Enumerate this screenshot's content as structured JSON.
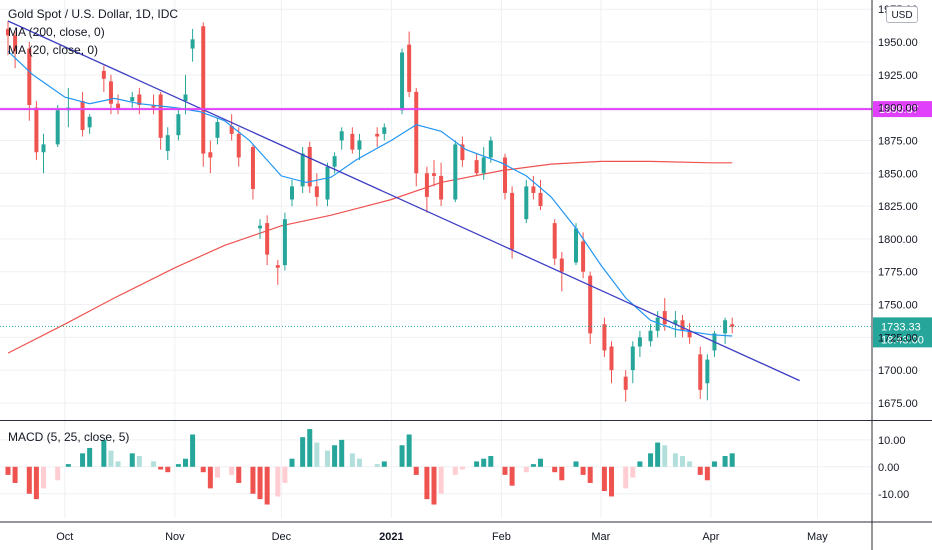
{
  "chart_data": [
    {
      "type": "candlestick",
      "title": "Gold Spot / U.S. Dollar, 1D, IDC",
      "currency_button": "USD",
      "indicators": [
        "MA (200, close, 0)",
        "MA (20, close, 0)"
      ],
      "y_ticks": [
        "1975.00",
        "1950.00",
        "1925.00",
        "1900.00",
        "1875.00",
        "1850.00",
        "1825.00",
        "1800.00",
        "1775.00",
        "1750.00",
        "1725.00",
        "1700.00",
        "1675.00"
      ],
      "y_tick_values": [
        1975,
        1950,
        1925,
        1900,
        1875,
        1850,
        1825,
        1800,
        1775,
        1750,
        1725,
        1700,
        1675
      ],
      "ylim": [
        1662,
        1982
      ],
      "x_ticks": [
        "Oct",
        "Nov",
        "Dec",
        "2021",
        "Feb",
        "Mar",
        "Apr",
        "May"
      ],
      "x_tick_dates": [
        "2020-10-01",
        "2020-11-01",
        "2020-12-01",
        "2021-01-01",
        "2021-02-01",
        "2021-03-01",
        "2021-04-01",
        "2021-05-01"
      ],
      "horizontal_line": {
        "value": 1898.87,
        "label": "1898.87",
        "color": "#e040fb"
      },
      "last_price": {
        "value": 1733.33,
        "label": "1733.33",
        "countdown": "18:43:00",
        "color": "#26a69a"
      },
      "trendline": {
        "start": {
          "date": "2020-09-15",
          "price": 1966
        },
        "end": {
          "date": "2021-04-26",
          "price": 1692
        },
        "color": "#3f3fc4"
      },
      "ma200": {
        "color": "#ef5350",
        "points": [
          [
            "2020-09-15",
            1713
          ],
          [
            "2020-10-01",
            1735
          ],
          [
            "2020-10-15",
            1755
          ],
          [
            "2020-11-01",
            1778
          ],
          [
            "2020-11-15",
            1795
          ],
          [
            "2020-12-01",
            1810
          ],
          [
            "2020-12-15",
            1818
          ],
          [
            "2021-01-01",
            1830
          ],
          [
            "2021-01-15",
            1843
          ],
          [
            "2021-02-01",
            1852
          ],
          [
            "2021-02-15",
            1857
          ],
          [
            "2021-03-01",
            1859
          ],
          [
            "2021-03-15",
            1859
          ],
          [
            "2021-04-01",
            1858
          ],
          [
            "2021-04-07",
            1858
          ]
        ]
      },
      "ma20": {
        "color": "#2196f3",
        "points": [
          [
            "2020-09-15",
            1943
          ],
          [
            "2020-09-22",
            1925
          ],
          [
            "2020-10-01",
            1908
          ],
          [
            "2020-10-08",
            1903
          ],
          [
            "2020-10-15",
            1907
          ],
          [
            "2020-10-22",
            1903
          ],
          [
            "2020-11-01",
            1900
          ],
          [
            "2020-11-08",
            1897
          ],
          [
            "2020-11-15",
            1890
          ],
          [
            "2020-11-22",
            1875
          ],
          [
            "2020-12-01",
            1848
          ],
          [
            "2020-12-08",
            1843
          ],
          [
            "2020-12-15",
            1847
          ],
          [
            "2020-12-22",
            1860
          ],
          [
            "2021-01-01",
            1875
          ],
          [
            "2021-01-08",
            1887
          ],
          [
            "2021-01-15",
            1882
          ],
          [
            "2021-01-22",
            1868
          ],
          [
            "2021-02-01",
            1858
          ],
          [
            "2021-02-08",
            1848
          ],
          [
            "2021-02-15",
            1832
          ],
          [
            "2021-02-22",
            1808
          ],
          [
            "2021-03-01",
            1780
          ],
          [
            "2021-03-08",
            1755
          ],
          [
            "2021-03-15",
            1738
          ],
          [
            "2021-03-22",
            1731
          ],
          [
            "2021-04-01",
            1727
          ],
          [
            "2021-04-07",
            1726
          ]
        ]
      },
      "candles": [
        [
          "2020-09-15",
          1960,
          1966,
          1940,
          1955
        ],
        [
          "2020-09-17",
          1955,
          1958,
          1930,
          1943
        ],
        [
          "2020-09-21",
          1945,
          1950,
          1890,
          1902
        ],
        [
          "2020-09-23",
          1900,
          1905,
          1860,
          1866
        ],
        [
          "2020-09-25",
          1866,
          1880,
          1850,
          1872
        ],
        [
          "2020-09-29",
          1872,
          1902,
          1870,
          1898
        ],
        [
          "2020-10-02",
          1898,
          1915,
          1885,
          1900
        ],
        [
          "2020-10-06",
          1905,
          1912,
          1878,
          1883
        ],
        [
          "2020-10-08",
          1885,
          1895,
          1880,
          1893
        ],
        [
          "2020-10-12",
          1928,
          1932,
          1912,
          1922
        ],
        [
          "2020-10-14",
          1920,
          1925,
          1895,
          1903
        ],
        [
          "2020-10-16",
          1903,
          1910,
          1895,
          1899
        ],
        [
          "2020-10-20",
          1905,
          1912,
          1900,
          1908
        ],
        [
          "2020-10-22",
          1910,
          1915,
          1895,
          1902
        ],
        [
          "2020-10-26",
          1902,
          1910,
          1895,
          1900
        ],
        [
          "2020-10-28",
          1910,
          1912,
          1868,
          1877
        ],
        [
          "2020-10-30",
          1867,
          1885,
          1860,
          1879
        ],
        [
          "2020-11-02",
          1879,
          1900,
          1875,
          1895
        ],
        [
          "2020-11-04",
          1905,
          1925,
          1895,
          1910
        ],
        [
          "2020-11-06",
          1945,
          1960,
          1935,
          1952
        ],
        [
          "2020-11-09",
          1962,
          1965,
          1855,
          1865
        ],
        [
          "2020-11-11",
          1866,
          1875,
          1850,
          1862
        ],
        [
          "2020-11-13",
          1877,
          1892,
          1872,
          1889
        ],
        [
          "2020-11-17",
          1886,
          1895,
          1875,
          1880
        ],
        [
          "2020-11-19",
          1880,
          1885,
          1855,
          1862
        ],
        [
          "2020-11-23",
          1870,
          1872,
          1830,
          1838
        ],
        [
          "2020-11-25",
          1808,
          1815,
          1800,
          1810
        ],
        [
          "2020-11-27",
          1812,
          1818,
          1780,
          1788
        ],
        [
          "2020-11-30",
          1780,
          1784,
          1765,
          1778
        ],
        [
          "2020-12-02",
          1780,
          1820,
          1776,
          1815
        ],
        [
          "2020-12-04",
          1830,
          1845,
          1825,
          1840
        ],
        [
          "2020-12-07",
          1840,
          1870,
          1835,
          1865
        ],
        [
          "2020-12-09",
          1870,
          1874,
          1835,
          1840
        ],
        [
          "2020-12-11",
          1840,
          1850,
          1825,
          1832
        ],
        [
          "2020-12-14",
          1830,
          1858,
          1825,
          1855
        ],
        [
          "2020-12-16",
          1855,
          1866,
          1850,
          1863
        ],
        [
          "2020-12-18",
          1875,
          1885,
          1868,
          1882
        ],
        [
          "2020-12-21",
          1880,
          1885,
          1865,
          1868
        ],
        [
          "2020-12-23",
          1868,
          1880,
          1860,
          1875
        ],
        [
          "2020-12-28",
          1880,
          1885,
          1870,
          1878
        ],
        [
          "2020-12-30",
          1880,
          1888,
          1875,
          1885
        ],
        [
          "2021-01-04",
          1898,
          1945,
          1895,
          1942
        ],
        [
          "2021-01-06",
          1948,
          1958,
          1908,
          1912
        ],
        [
          "2021-01-08",
          1912,
          1915,
          1840,
          1850
        ],
        [
          "2021-01-11",
          1850,
          1855,
          1820,
          1832
        ],
        [
          "2021-01-13",
          1850,
          1860,
          1840,
          1848
        ],
        [
          "2021-01-15",
          1848,
          1858,
          1825,
          1830
        ],
        [
          "2021-01-19",
          1830,
          1875,
          1828,
          1872
        ],
        [
          "2021-01-21",
          1872,
          1878,
          1855,
          1860
        ],
        [
          "2021-01-25",
          1860,
          1865,
          1848,
          1850
        ],
        [
          "2021-01-27",
          1850,
          1870,
          1845,
          1862
        ],
        [
          "2021-01-29",
          1862,
          1878,
          1858,
          1875
        ],
        [
          "2021-02-02",
          1862,
          1865,
          1830,
          1835
        ],
        [
          "2021-02-04",
          1835,
          1840,
          1785,
          1792
        ],
        [
          "2021-02-08",
          1815,
          1845,
          1812,
          1840
        ],
        [
          "2021-02-10",
          1840,
          1848,
          1830,
          1835
        ],
        [
          "2021-02-12",
          1835,
          1845,
          1822,
          1825
        ],
        [
          "2021-02-16",
          1812,
          1815,
          1780,
          1785
        ],
        [
          "2021-02-18",
          1785,
          1790,
          1760,
          1775
        ],
        [
          "2021-02-22",
          1782,
          1812,
          1780,
          1808
        ],
        [
          "2021-02-24",
          1798,
          1805,
          1770,
          1775
        ],
        [
          "2021-02-26",
          1772,
          1775,
          1720,
          1728
        ],
        [
          "2021-03-02",
          1735,
          1740,
          1710,
          1715
        ],
        [
          "2021-03-04",
          1718,
          1722,
          1690,
          1700
        ],
        [
          "2021-03-08",
          1695,
          1700,
          1676,
          1685
        ],
        [
          "2021-03-10",
          1700,
          1722,
          1690,
          1718
        ],
        [
          "2021-03-12",
          1718,
          1730,
          1710,
          1725
        ],
        [
          "2021-03-15",
          1722,
          1735,
          1718,
          1730
        ],
        [
          "2021-03-17",
          1730,
          1745,
          1725,
          1740
        ],
        [
          "2021-03-19",
          1745,
          1755,
          1730,
          1735
        ],
        [
          "2021-03-22",
          1735,
          1745,
          1725,
          1738
        ],
        [
          "2021-03-24",
          1738,
          1742,
          1725,
          1730
        ],
        [
          "2021-03-26",
          1730,
          1736,
          1720,
          1725
        ],
        [
          "2021-03-29",
          1712,
          1718,
          1678,
          1685
        ],
        [
          "2021-03-31",
          1690,
          1712,
          1677,
          1708
        ],
        [
          "2021-04-02",
          1715,
          1730,
          1710,
          1728
        ],
        [
          "2021-04-05",
          1728,
          1740,
          1720,
          1738
        ],
        [
          "2021-04-07",
          1735,
          1740,
          1728,
          1733
        ]
      ]
    },
    {
      "type": "histogram",
      "title": "MACD (5, 25, close, 5)",
      "y_ticks": [
        "10.00",
        "0.00",
        "-10.00"
      ],
      "y_tick_values": [
        10,
        0,
        -10
      ],
      "ylim": [
        -19,
        17
      ],
      "positive_colors": [
        "#26a69a",
        "#b2dfdb"
      ],
      "negative_colors": [
        "#ef5350",
        "#ffcdd2"
      ],
      "bars": [
        [
          "2020-09-15",
          -3
        ],
        [
          "2020-09-17",
          -6
        ],
        [
          "2020-09-21",
          -10
        ],
        [
          "2020-09-23",
          -12
        ],
        [
          "2020-09-25",
          -8
        ],
        [
          "2020-09-29",
          -5
        ],
        [
          "2020-10-02",
          1
        ],
        [
          "2020-10-06",
          5
        ],
        [
          "2020-10-08",
          7
        ],
        [
          "2020-10-12",
          10
        ],
        [
          "2020-10-14",
          6
        ],
        [
          "2020-10-16",
          2
        ],
        [
          "2020-10-20",
          5
        ],
        [
          "2020-10-22",
          4
        ],
        [
          "2020-10-26",
          2
        ],
        [
          "2020-10-28",
          -1
        ],
        [
          "2020-10-30",
          -2
        ],
        [
          "2020-11-02",
          1
        ],
        [
          "2020-11-04",
          3
        ],
        [
          "2020-11-06",
          12
        ],
        [
          "2020-11-09",
          -2
        ],
        [
          "2020-11-11",
          -8
        ],
        [
          "2020-11-13",
          -4
        ],
        [
          "2020-11-17",
          -3
        ],
        [
          "2020-11-19",
          -6
        ],
        [
          "2020-11-23",
          -10
        ],
        [
          "2020-11-25",
          -12
        ],
        [
          "2020-11-27",
          -14
        ],
        [
          "2020-11-30",
          -11
        ],
        [
          "2020-12-02",
          -6
        ],
        [
          "2020-12-04",
          3
        ],
        [
          "2020-12-07",
          11
        ],
        [
          "2020-12-09",
          14
        ],
        [
          "2020-12-11",
          9
        ],
        [
          "2020-12-14",
          6
        ],
        [
          "2020-12-16",
          8
        ],
        [
          "2020-12-18",
          10
        ],
        [
          "2020-12-21",
          5
        ],
        [
          "2020-12-23",
          3
        ],
        [
          "2020-12-28",
          1
        ],
        [
          "2020-12-30",
          2
        ],
        [
          "2021-01-04",
          8
        ],
        [
          "2021-01-06",
          12
        ],
        [
          "2021-01-08",
          -3
        ],
        [
          "2021-01-11",
          -12
        ],
        [
          "2021-01-13",
          -14
        ],
        [
          "2021-01-15",
          -10
        ],
        [
          "2021-01-19",
          -3
        ],
        [
          "2021-01-21",
          -1
        ],
        [
          "2021-01-25",
          2
        ],
        [
          "2021-01-27",
          3
        ],
        [
          "2021-01-29",
          4
        ],
        [
          "2021-02-02",
          -3
        ],
        [
          "2021-02-04",
          -7
        ],
        [
          "2021-02-08",
          -2
        ],
        [
          "2021-02-10",
          1
        ],
        [
          "2021-02-12",
          3
        ],
        [
          "2021-02-16",
          -2
        ],
        [
          "2021-02-18",
          -5
        ],
        [
          "2021-02-22",
          2
        ],
        [
          "2021-02-24",
          -3
        ],
        [
          "2021-02-26",
          -6
        ],
        [
          "2021-03-02",
          -9
        ],
        [
          "2021-03-04",
          -11
        ],
        [
          "2021-03-08",
          -8
        ],
        [
          "2021-03-10",
          -4
        ],
        [
          "2021-03-12",
          2
        ],
        [
          "2021-03-15",
          5
        ],
        [
          "2021-03-17",
          9
        ],
        [
          "2021-03-19",
          8
        ],
        [
          "2021-03-22",
          5
        ],
        [
          "2021-03-24",
          4
        ],
        [
          "2021-03-26",
          2
        ],
        [
          "2021-03-29",
          -3
        ],
        [
          "2021-03-31",
          -5
        ],
        [
          "2021-04-02",
          2
        ],
        [
          "2021-04-05",
          4
        ],
        [
          "2021-04-07",
          5
        ]
      ]
    }
  ]
}
